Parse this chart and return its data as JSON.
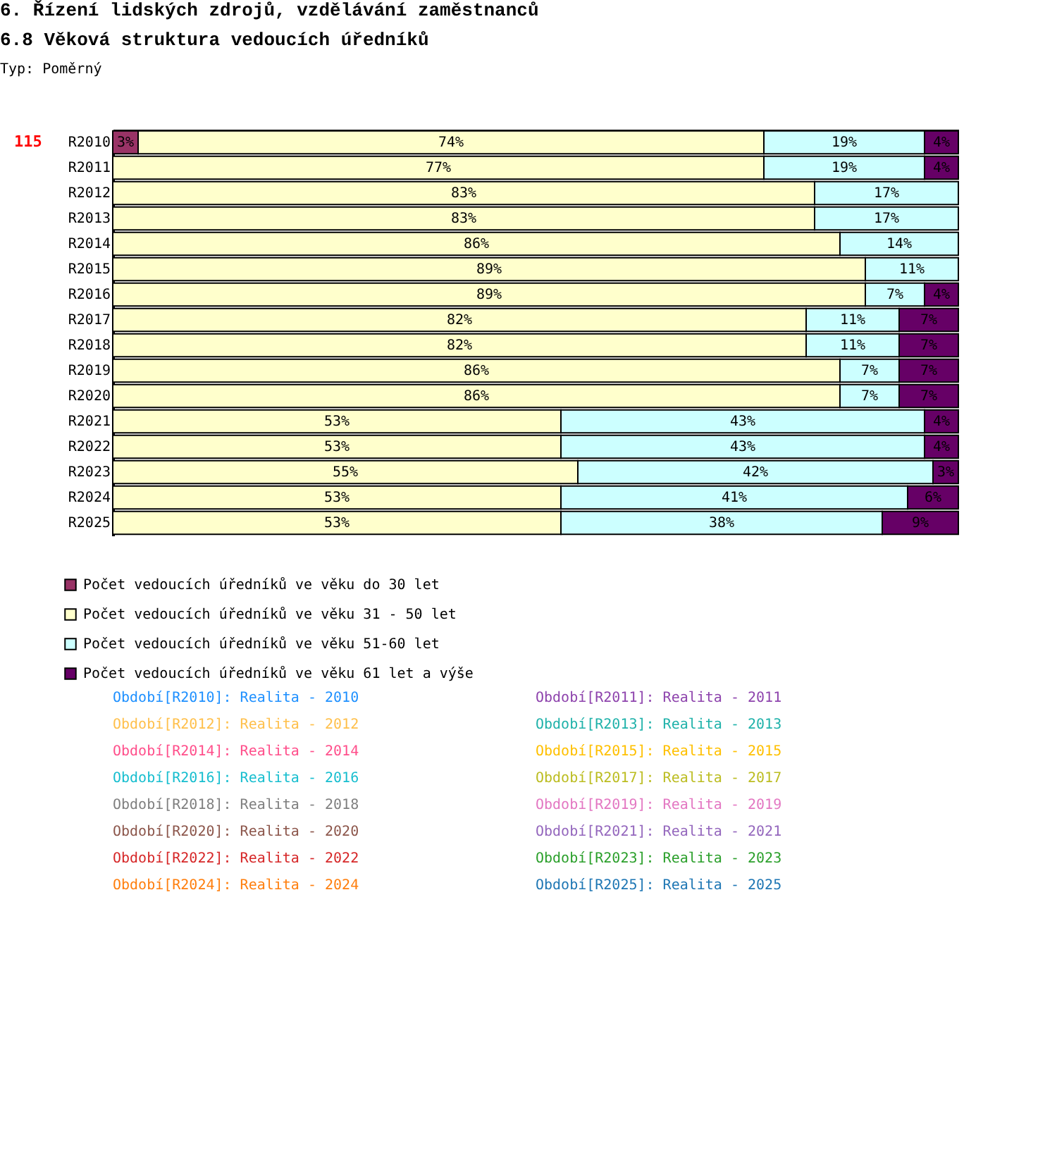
{
  "chart_data": {
    "type": "bar",
    "orientation": "horizontal",
    "stacked": true,
    "title": "6. Řízení lidských zdrojů, vzdělávání zaměstnanců",
    "subtitle": "6.8 Věková struktura vedoucích úředníků",
    "annotations": [
      "Typ: Poměrný",
      "115",
      "Období[R2010]: Realita - 2010",
      "Období[R2011]: Realita - 2011",
      "Období[R2012]: Realita - 2012",
      "Období[R2013]: Realita - 2013",
      "Období[R2014]: Realita - 2014",
      "Období[R2015]: Realita - 2015",
      "Období[R2016]: Realita - 2016",
      "Období[R2017]: Realita - 2017",
      "Období[R2018]: Realita - 2018",
      "Období[R2019]: Realita - 2019",
      "Období[R2020]: Realita - 2020",
      "Období[R2021]: Realita - 2021",
      "Období[R2022]: Realita - 2022",
      "Období[R2023]: Realita - 2023",
      "Období[R2024]: Realita - 2024",
      "Období[R2025]: Realita - 2025"
    ],
    "categories": [
      "R2010",
      "R2011",
      "R2012",
      "R2013",
      "R2014",
      "R2015",
      "R2016",
      "R2017",
      "R2018",
      "R2019",
      "R2020",
      "R2021",
      "R2022",
      "R2023",
      "R2024",
      "R2025"
    ],
    "xlim": [
      0,
      100
    ],
    "tick_labels": "y",
    "legend": "bottom",
    "series": [
      {
        "name": "Počet vedoucích úředníků ve věku do 30 let",
        "color": "#993366",
        "values": [
          3,
          null,
          null,
          null,
          null,
          null,
          null,
          null,
          null,
          null,
          null,
          null,
          null,
          null,
          null,
          null
        ],
        "value_labels": [
          "3%",
          null,
          null,
          null,
          null,
          null,
          null,
          null,
          null,
          null,
          null,
          null,
          null,
          null,
          null,
          null
        ]
      },
      {
        "name": "Počet vedoucích úředníků ve věku 31 - 50 let",
        "color": "#ffffcc",
        "values": [
          74,
          77,
          83,
          83,
          86,
          89,
          89,
          82,
          82,
          86,
          86,
          53,
          53,
          55,
          53,
          53
        ],
        "value_labels": [
          "74%",
          "77%",
          "83%",
          "83%",
          "86%",
          "89%",
          "89%",
          "82%",
          "82%",
          "86%",
          "86%",
          "53%",
          "53%",
          "55%",
          "53%",
          "53%"
        ]
      },
      {
        "name": "Počet vedoucích úředníků ve věku 51-60 let",
        "color": "#ccffff",
        "values": [
          19,
          19,
          17,
          17,
          14,
          11,
          7,
          11,
          11,
          7,
          7,
          43,
          43,
          42,
          41,
          38
        ],
        "value_labels": [
          "19%",
          "19%",
          "17%",
          "17%",
          "14%",
          "11%",
          "7%",
          "11%",
          "11%",
          "7%",
          "7%",
          "43%",
          "43%",
          "42%",
          "41%",
          "38%"
        ]
      },
      {
        "name": "Počet vedoucích úředníků ve věku 61 let a výše",
        "color": "#660066",
        "values": [
          4,
          4,
          null,
          null,
          null,
          null,
          4,
          7,
          7,
          7,
          7,
          4,
          4,
          3,
          6,
          9
        ],
        "value_labels": [
          "4%",
          "4%",
          null,
          null,
          null,
          null,
          "4%",
          "7%",
          "7%",
          "7%",
          "7%",
          "4%",
          "4%",
          "3%",
          "6%",
          "9%"
        ]
      }
    ]
  }
}
